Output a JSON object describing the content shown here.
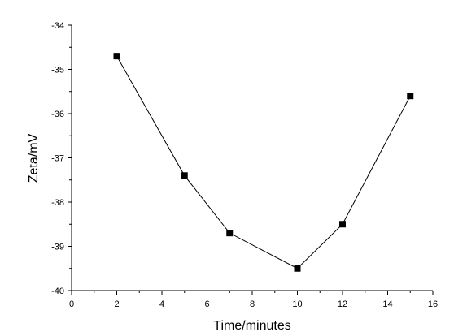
{
  "chart_data": {
    "type": "line",
    "title": "",
    "xlabel": "Time/minutes",
    "ylabel": "Zeta/mV",
    "xlim": [
      0,
      16
    ],
    "ylim": [
      -40,
      -34
    ],
    "x_ticks": [
      0,
      2,
      4,
      6,
      8,
      10,
      12,
      14,
      16
    ],
    "y_ticks": [
      -40,
      -39,
      -38,
      -37,
      -36,
      -35,
      -34
    ],
    "x_tick_labels": [
      "0",
      "2",
      "4",
      "6",
      "8",
      "10",
      "12",
      "14",
      "16"
    ],
    "y_tick_labels": [
      "-40",
      "-39",
      "-38",
      "-37",
      "-36",
      "-35",
      "-34"
    ],
    "grid": false,
    "legend": "none",
    "marker": "square",
    "colors": {
      "line": "#000000",
      "marker": "#000000"
    },
    "series": [
      {
        "x": [
          2,
          5,
          7,
          10,
          12,
          15
        ],
        "y": [
          -34.7,
          -37.4,
          -38.7,
          -39.5,
          -38.5,
          -35.6
        ]
      }
    ]
  }
}
